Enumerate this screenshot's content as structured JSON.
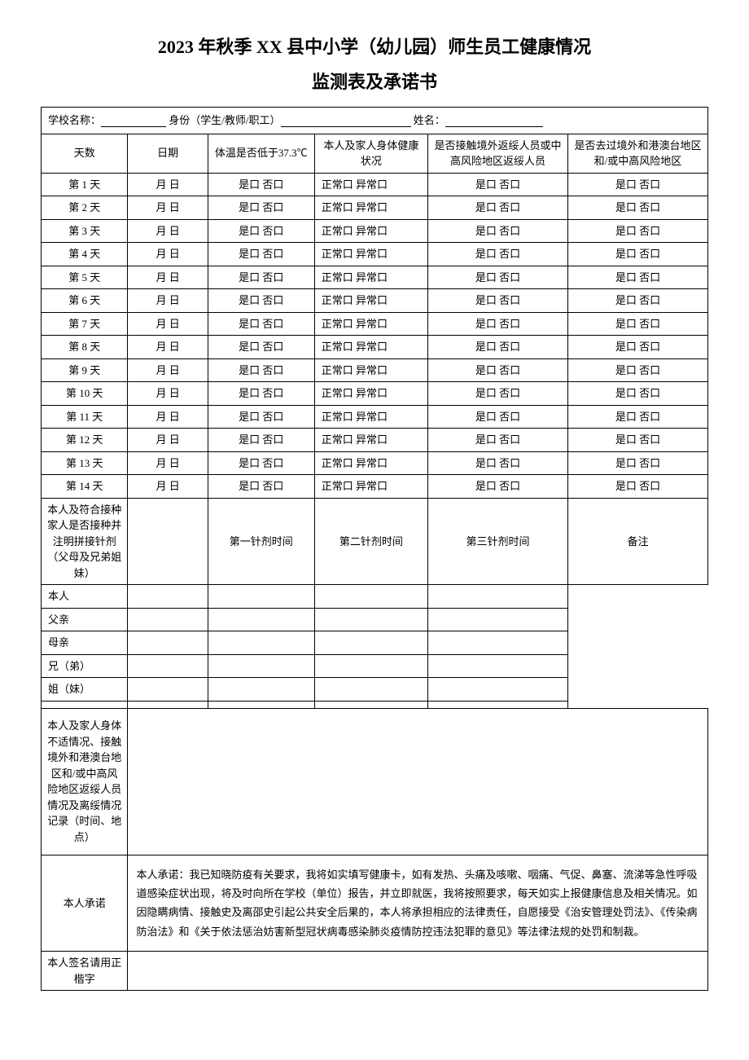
{
  "title_line1": "2023 年秋季 XX 县中小学（幼儿园）师生员工健康情况",
  "title_line2": "监测表及承诺书",
  "header": {
    "school_label": "学校名称：",
    "identity_label": "身份（学生/教师/职工）",
    "name_label": "姓名："
  },
  "columns": {
    "days": "天数",
    "date": "日期",
    "temp": "体温是否低于37.3℃",
    "health": "本人及家人身体健康状况",
    "contact": "是否接触境外返绥人员或中高风险地区返绥人员",
    "travel": "是否去过境外和港澳台地区和/或中高风险地区"
  },
  "rows": [
    {
      "day": "第 1 天",
      "date": "月 日",
      "temp": "是口 否口",
      "health": "正常口 异常口",
      "contact": "是口 否口",
      "travel": "是口 否口"
    },
    {
      "day": "第 2 天",
      "date": "月 日",
      "temp": "是口 否口",
      "health": "正常口 异常口",
      "contact": "是口 否口",
      "travel": "是口 否口"
    },
    {
      "day": "第 3 天",
      "date": "月 日",
      "temp": "是口 否口",
      "health": "正常口 异常口",
      "contact": "是口 否口",
      "travel": "是口 否口"
    },
    {
      "day": "第 4 天",
      "date": "月 日",
      "temp": "是口 否口",
      "health": "正常口 异常口",
      "contact": "是口 否口",
      "travel": "是口 否口"
    },
    {
      "day": "第 5 天",
      "date": "月 日",
      "temp": "是口 否口",
      "health": "正常口 异常口",
      "contact": "是口 否口",
      "travel": "是口 否口"
    },
    {
      "day": "第 6 天",
      "date": "月 日",
      "temp": "是口 否口",
      "health": "正常口 异常口",
      "contact": "是口 否口",
      "travel": "是口 否口"
    },
    {
      "day": "第 7 天",
      "date": "月 日",
      "temp": "是口 否口",
      "health": "正常口 异常口",
      "contact": "是口 否口",
      "travel": "是口 否口"
    },
    {
      "day": "第 8 天",
      "date": "月 日",
      "temp": "是口 否口",
      "health": "正常口 异常口",
      "contact": "是口 否口",
      "travel": "是口 否口"
    },
    {
      "day": "第 9 天",
      "date": "月 日",
      "temp": "是口 否口",
      "health": "正常口 异常口",
      "contact": "是口 否口",
      "travel": "是口 否口"
    },
    {
      "day": "第 10 天",
      "date": "月 日",
      "temp": "是口 否口",
      "health": "正常口 异常口",
      "contact": "是口 否口",
      "travel": "是口 否口"
    },
    {
      "day": "第 11 天",
      "date": "月 日",
      "temp": "是口 否口",
      "health": "正常口 异常口",
      "contact": "是口 否口",
      "travel": "是口 否口"
    },
    {
      "day": "第 12 天",
      "date": "月 日",
      "temp": "是口 否口",
      "health": "正常口 异常口",
      "contact": "是口 否口",
      "travel": "是口 否口"
    },
    {
      "day": "第 13 天",
      "date": "月 日",
      "temp": "是口 否口",
      "health": "正常口 异常口",
      "contact": "是口 否口",
      "travel": "是口 否口"
    },
    {
      "day": "第 14 天",
      "date": "月 日",
      "temp": "是口 否口",
      "health": "正常口 异常口",
      "contact": "是口 否口",
      "travel": "是口 否口"
    }
  ],
  "vaccine": {
    "label": "本人及符合接种家人是否接种并注明拼接针剂（父母及兄弟姐妹）",
    "header_blank": "",
    "dose1": "第一针剂时间",
    "dose2": "第二针剂时间",
    "dose3": "第三针剂时间",
    "remark": "备注",
    "persons": [
      "本人",
      "父亲",
      "母亲",
      "兄（弟）",
      "姐（妹）",
      ""
    ]
  },
  "situation_label": "本人及家人身体不适情况、接触境外和港澳台地区和/或中高风险地区返绥人员情况及离绥情况记录（时间、地点）",
  "commitment": {
    "label": "本人承诺",
    "text": "本人承诺：我已知晓防疫有关要求，我将如实填写健康卡，如有发热、头痛及咳嗽、咽痛、气促、鼻塞、流涕等急性呼吸道感染症状出现，将及时向所在学校（单位）报告，并立即就医，我将按照要求，每天如实上报健康信息及相关情况。如因隐瞒病情、接触史及离邵史引起公共安全后果的，本人将承担相应的法律责任，自愿接受《治安管理处罚法》、《传染病防治法》和《关于依法惩治妨害新型冠状病毒感染肺炎疫情防控违法犯罪的意见》等法律法规的处罚和制裁。"
  },
  "signature_label": "本人签名请用正楷字"
}
